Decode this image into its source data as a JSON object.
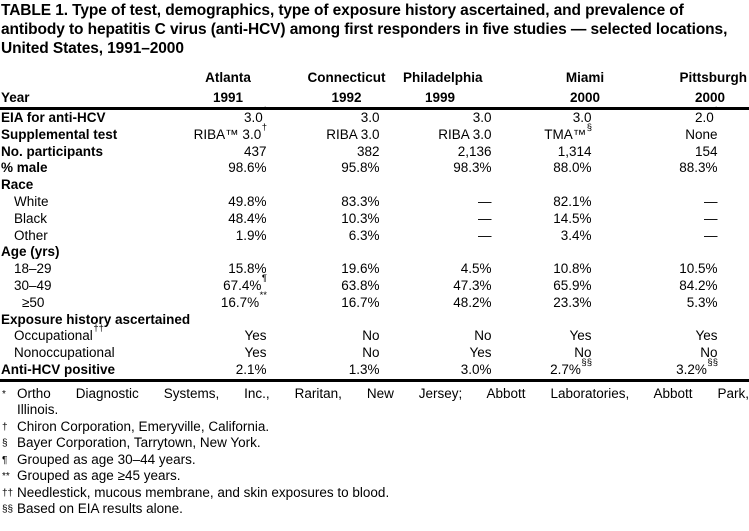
{
  "title": "TABLE 1. Type of test, demographics, type of exposure history ascertained, and prevalence of antibody to hepatitis C virus (anti-HCV) among first responders in five studies — selected locations, United States, 1991–2000",
  "header": {
    "year_label": "Year",
    "columns": [
      {
        "city": "Atlanta",
        "year": "1991"
      },
      {
        "city": "Connecticut",
        "year": "1992"
      },
      {
        "city": "Philadelphia",
        "year": "1999"
      },
      {
        "city": "Miami",
        "year": "2000"
      },
      {
        "city": "Pittsburgh",
        "year": "2000"
      }
    ]
  },
  "rows": [
    {
      "label": {
        "t": "EIA for anti-HCV"
      },
      "cells": [
        {
          "t": "3.0",
          "s": "*"
        },
        {
          "t": "3.0"
        },
        {
          "t": "3.0"
        },
        {
          "t": "3.0"
        },
        {
          "t": "2.0",
          "s": "*"
        }
      ]
    },
    {
      "label": {
        "t": "Supplemental test"
      },
      "cells": [
        {
          "t": "RIBA™ 3.0",
          "s": "†"
        },
        {
          "t": "RIBA 3.0"
        },
        {
          "t": "RIBA 3.0"
        },
        {
          "t": "TMA™",
          "s": "§"
        },
        {
          "t": "None"
        }
      ]
    },
    {
      "label": {
        "t": "No. participants"
      },
      "cells": [
        {
          "t": "437"
        },
        {
          "t": "382"
        },
        {
          "t": "2,136"
        },
        {
          "t": "1,314"
        },
        {
          "t": "154"
        }
      ]
    },
    {
      "label": {
        "t": "% male"
      },
      "cells": [
        {
          "t": "98.6%"
        },
        {
          "t": "95.8%"
        },
        {
          "t": "98.3%"
        },
        {
          "t": "88.0%"
        },
        {
          "t": "88.3%"
        }
      ]
    },
    {
      "label": {
        "t": "Race"
      }
    },
    {
      "label": {
        "t": "White"
      },
      "cells": [
        {
          "t": "49.8%"
        },
        {
          "t": "83.3%"
        },
        {
          "t": "—"
        },
        {
          "t": "82.1%"
        },
        {
          "t": "—"
        }
      ]
    },
    {
      "label": {
        "t": "Black"
      },
      "cells": [
        {
          "t": "48.4%"
        },
        {
          "t": "10.3%"
        },
        {
          "t": "—"
        },
        {
          "t": "14.5%"
        },
        {
          "t": "—"
        }
      ]
    },
    {
      "label": {
        "t": "Other"
      },
      "cells": [
        {
          "t": "1.9%"
        },
        {
          "t": "6.3%"
        },
        {
          "t": "—"
        },
        {
          "t": "3.4%"
        },
        {
          "t": "—"
        }
      ]
    },
    {
      "label": {
        "t": "Age (yrs)"
      }
    },
    {
      "label": {
        "t": "18–29"
      },
      "cells": [
        {
          "t": "15.8%"
        },
        {
          "t": "19.6%"
        },
        {
          "t": "4.5%"
        },
        {
          "t": "10.8%"
        },
        {
          "t": "10.5%"
        }
      ]
    },
    {
      "label": {
        "t": "30–49"
      },
      "cells": [
        {
          "t": "67.4%",
          "s": "¶"
        },
        {
          "t": "63.8%"
        },
        {
          "t": "47.3%"
        },
        {
          "t": "65.9%"
        },
        {
          "t": "84.2%"
        }
      ]
    },
    {
      "label": {
        "t": "≥50"
      },
      "cells": [
        {
          "t": "16.7%",
          "s": "**"
        },
        {
          "t": "16.7%"
        },
        {
          "t": "48.2%"
        },
        {
          "t": "23.3%"
        },
        {
          "t": "5.3%"
        }
      ]
    },
    {
      "label": {
        "t": "Exposure history ascertained"
      }
    },
    {
      "label": {
        "t": "Occupational",
        "s": "††"
      },
      "cells": [
        {
          "t": "Yes"
        },
        {
          "t": "No"
        },
        {
          "t": "No"
        },
        {
          "t": "Yes"
        },
        {
          "t": "Yes"
        }
      ]
    },
    {
      "label": {
        "t": "Nonoccupational"
      },
      "cells": [
        {
          "t": "Yes"
        },
        {
          "t": "No"
        },
        {
          "t": "Yes"
        },
        {
          "t": "No"
        },
        {
          "t": "No"
        }
      ]
    },
    {
      "label": {
        "t": "Anti-HCV positive"
      },
      "cells": [
        {
          "t": "2.1%"
        },
        {
          "t": "1.3%"
        },
        {
          "t": "3.0%"
        },
        {
          "t": "2.7%",
          "s": "§§"
        },
        {
          "t": "3.2%",
          "s": "§§"
        }
      ]
    }
  ],
  "footnotes": [
    {
      "marker": "*",
      "line1": "Ortho Diagnostic Systems, Inc., Raritan, New Jersey; Abbott Laboratories, Abbott Park,",
      "line2": "Illinois."
    },
    {
      "marker": "†",
      "text": "Chiron Corporation, Emeryville, California."
    },
    {
      "marker": "§",
      "text": "Bayer Corporation, Tarrytown, New York."
    },
    {
      "marker": "¶",
      "text": "Grouped as age 30–44 years."
    },
    {
      "marker": "**",
      "text": "Grouped as age ≥45 years."
    },
    {
      "marker": "††",
      "text": "Needlestick, mucous membrane, and skin exposures to blood."
    },
    {
      "marker": "§§",
      "text": "Based on EIA results alone."
    }
  ]
}
